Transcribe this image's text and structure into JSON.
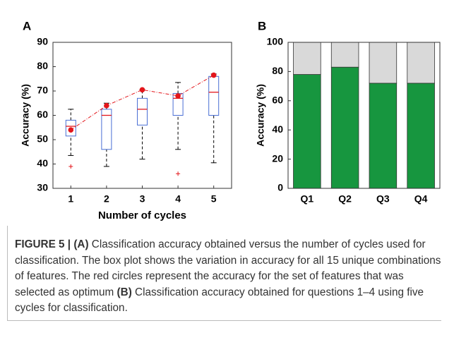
{
  "chart_data": [
    {
      "type": "box",
      "panel": "A",
      "x_label": "Number of cycles",
      "y_label": "Accuracy (%)",
      "categories": [
        "1",
        "2",
        "3",
        "4",
        "5"
      ],
      "boxes": [
        {
          "whisker_low": 43.5,
          "q1": 51.5,
          "median": 55.5,
          "q3": 58,
          "whisker_high": 62.5,
          "outliers": [
            39
          ]
        },
        {
          "whisker_low": 39,
          "q1": 46,
          "median": 60,
          "q3": 62.5,
          "whisker_high": 65,
          "outliers": []
        },
        {
          "whisker_low": 42,
          "q1": 56,
          "median": 62.5,
          "q3": 67,
          "whisker_high": 70.5,
          "outliers": []
        },
        {
          "whisker_low": 46,
          "q1": 60,
          "median": 67,
          "q3": 69,
          "whisker_high": 73.5,
          "outliers": [
            36
          ]
        },
        {
          "whisker_low": 40.5,
          "q1": 60,
          "median": 69.5,
          "q3": 76,
          "whisker_high": 77,
          "outliers": []
        }
      ],
      "optimum": {
        "values": [
          54,
          64,
          70.5,
          68,
          76.5
        ],
        "color": "#e3161b"
      },
      "box_color": "#4a6fd4",
      "median_color": "#e3161b",
      "ylim": [
        30,
        90
      ],
      "yticks": [
        30,
        40,
        50,
        60,
        70,
        80,
        90
      ]
    },
    {
      "type": "stacked_bar",
      "panel": "B",
      "y_label": "Accuracy (%)",
      "categories": [
        "Q1",
        "Q2",
        "Q3",
        "Q4"
      ],
      "series": [
        {
          "color": "#17963f",
          "values": [
            78,
            83,
            72,
            72
          ],
          "labeled": true
        },
        {
          "color": "#d9d9d9",
          "values": [
            22,
            17,
            28,
            28
          ]
        }
      ],
      "ylim": [
        0,
        100
      ],
      "yticks": [
        0,
        20,
        40,
        60,
        80,
        100
      ]
    }
  ],
  "caption": {
    "parts": [
      {
        "text": "FIGURE 5 | (A)",
        "bold": true
      },
      {
        "text": " Classification accuracy obtained versus the number of cycles used for classification. The box plot shows the variation in accuracy for all 15 unique combinations of features. The red circles represent the accuracy for the set of features that was selected as optimum ",
        "bold": false
      },
      {
        "text": "(B)",
        "bold": true
      },
      {
        "text": " Classification accuracy obtained for questions 1–4 using five cycles for classification.",
        "bold": false
      }
    ]
  }
}
